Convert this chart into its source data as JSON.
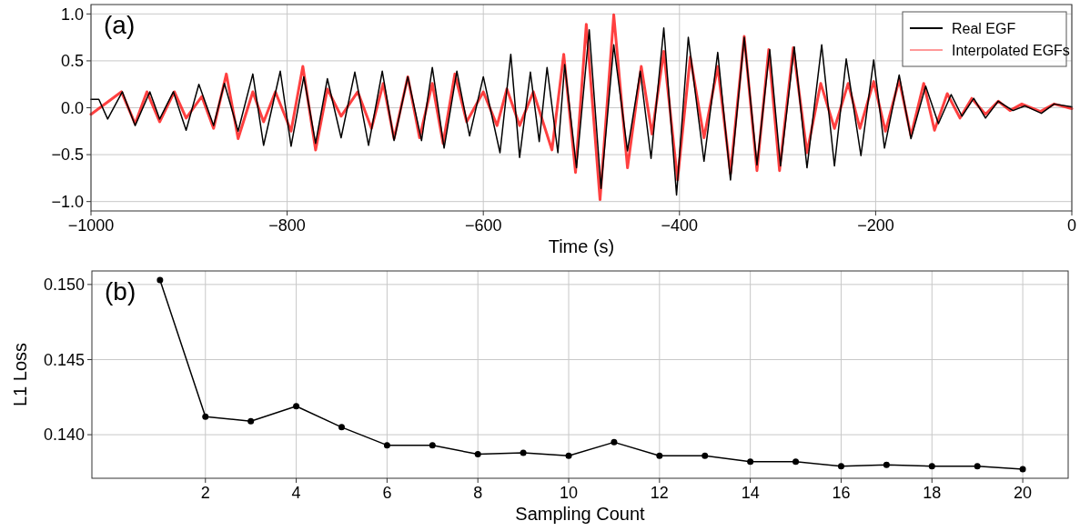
{
  "chart_data": [
    {
      "type": "line",
      "xlabel": "Time (s)",
      "annotations": [
        "(a)"
      ],
      "xlim": [
        -1000,
        0
      ],
      "ylim": [
        -1.1,
        1.1
      ],
      "xticks": [
        {
          "value": -1000,
          "label": "−1000"
        },
        {
          "value": -800,
          "label": "−800"
        },
        {
          "value": -600,
          "label": "−600"
        },
        {
          "value": -400,
          "label": "−400"
        },
        {
          "value": -200,
          "label": "−200"
        },
        0
      ],
      "yticks": [
        {
          "value": -1,
          "label": "−1.0"
        },
        {
          "value": -0.5,
          "label": "−0.5"
        },
        {
          "value": 0,
          "label": "0.0"
        },
        {
          "value": 0.5,
          "label": "0.5"
        },
        {
          "value": 1,
          "label": "1.0"
        }
      ],
      "grid": true,
      "legend": "top right",
      "series": [
        {
          "name": "Real EGF",
          "color": "#000000",
          "x": [
            -1000,
            -992,
            -983,
            -968,
            -955,
            -940,
            -930,
            -916,
            -903,
            -890,
            -875,
            -864,
            -850,
            -835,
            -824,
            -807,
            -796,
            -783,
            -771,
            -759,
            -745,
            -731,
            -717,
            -703,
            -691,
            -677,
            -663,
            -652,
            -640,
            -627,
            -614,
            -600,
            -583,
            -572,
            -563,
            -552,
            -543,
            -535,
            -524,
            -517,
            -505,
            -492,
            -480,
            -467,
            -453,
            -440,
            -429,
            -416,
            -403,
            -391,
            -375,
            -361,
            -348,
            -334,
            -321,
            -308,
            -297,
            -283,
            -270,
            -255,
            -242,
            -230,
            -215,
            -202,
            -191,
            -176,
            -164,
            -149,
            -136,
            -123,
            -112,
            -100,
            -88,
            -75,
            -60,
            -48,
            -31,
            -18,
            0
          ],
          "values": [
            0.09,
            0.09,
            -0.12,
            0.17,
            -0.19,
            0.17,
            -0.12,
            0.17,
            -0.24,
            0.25,
            -0.19,
            0.26,
            -0.25,
            0.36,
            -0.4,
            0.39,
            -0.41,
            0.33,
            -0.38,
            0.31,
            -0.32,
            0.38,
            -0.4,
            0.39,
            -0.35,
            0.33,
            -0.35,
            0.43,
            -0.43,
            0.39,
            -0.3,
            0.33,
            -0.48,
            0.57,
            -0.53,
            0.38,
            -0.36,
            0.43,
            -0.48,
            0.46,
            -0.64,
            0.83,
            -0.86,
            0.67,
            -0.46,
            0.39,
            -0.54,
            0.85,
            -0.93,
            0.75,
            -0.57,
            0.59,
            -0.77,
            0.75,
            -0.61,
            0.62,
            -0.62,
            0.65,
            -0.64,
            0.67,
            -0.62,
            0.52,
            -0.51,
            0.51,
            -0.43,
            0.35,
            -0.33,
            0.23,
            -0.17,
            0.14,
            -0.09,
            0.1,
            -0.11,
            0.07,
            -0.03,
            0.02,
            -0.06,
            0.04,
            0.01
          ]
        },
        {
          "name": "Interpolated EGFs",
          "color": "#ff0000",
          "x": [
            -1000,
            -969,
            -955,
            -943,
            -930,
            -915,
            -903,
            -887,
            -875,
            -862,
            -850,
            -835,
            -824,
            -812,
            -796,
            -784,
            -771,
            -759,
            -745,
            -728,
            -714,
            -702,
            -691,
            -677,
            -665,
            -652,
            -641,
            -629,
            -617,
            -600,
            -586,
            -576,
            -563,
            -549,
            -530,
            -518,
            -506,
            -495,
            -481,
            -467,
            -453,
            -439,
            -428,
            -416,
            -402,
            -389,
            -375,
            -361,
            -348,
            -334,
            -321,
            -309,
            -298,
            -284,
            -270,
            -256,
            -242,
            -228,
            -216,
            -202,
            -190,
            -176,
            -164,
            -151,
            -140,
            -127,
            -114,
            -102,
            -88,
            -75,
            -63,
            -51,
            -32,
            -18,
            0
          ],
          "values": [
            -0.07,
            0.17,
            -0.17,
            0.17,
            -0.15,
            0.17,
            -0.11,
            0.12,
            -0.22,
            0.36,
            -0.33,
            0.17,
            -0.15,
            0.17,
            -0.25,
            0.44,
            -0.45,
            0.2,
            -0.09,
            0.17,
            -0.22,
            0.26,
            -0.33,
            0.33,
            -0.32,
            0.26,
            -0.38,
            0.36,
            -0.15,
            0.17,
            -0.19,
            0.2,
            -0.19,
            0.17,
            -0.45,
            0.57,
            -0.69,
            0.89,
            -0.98,
            0.99,
            -0.64,
            0.44,
            -0.28,
            0.6,
            -0.77,
            0.54,
            -0.32,
            0.44,
            -0.7,
            0.76,
            -0.67,
            0.62,
            -0.67,
            0.64,
            -0.48,
            0.26,
            -0.22,
            0.26,
            -0.22,
            0.28,
            -0.25,
            0.3,
            -0.3,
            0.26,
            -0.24,
            0.15,
            -0.11,
            0.1,
            -0.07,
            0.07,
            -0.03,
            0.04,
            -0.04,
            0.04,
            -0.01
          ]
        }
      ]
    },
    {
      "type": "line",
      "xlabel": "Sampling Count",
      "ylabel": "L1 Loss",
      "annotations": [
        "(b)"
      ],
      "xlim": [
        -0.5,
        21
      ],
      "ylim": [
        0.1371,
        0.1509
      ],
      "xticks": [
        2,
        4,
        6,
        8,
        10,
        12,
        14,
        16,
        18,
        20
      ],
      "yticks": [
        {
          "value": 0.14,
          "label": "0.140"
        },
        {
          "value": 0.145,
          "label": "0.145"
        },
        {
          "value": 0.15,
          "label": "0.150"
        }
      ],
      "grid": true,
      "marker": "circle",
      "series": [
        {
          "color": "#000000",
          "x": [
            1,
            2,
            3,
            4,
            5,
            6,
            7,
            8,
            9,
            10,
            11,
            12,
            13,
            14,
            15,
            16,
            17,
            18,
            19,
            20
          ],
          "values": [
            0.1503,
            0.1412,
            0.1409,
            0.1419,
            0.1405,
            0.1393,
            0.1393,
            0.1387,
            0.1388,
            0.1386,
            0.1395,
            0.1386,
            0.1386,
            0.1382,
            0.1382,
            0.1379,
            0.138,
            0.1379,
            0.1379,
            0.1377
          ]
        }
      ]
    }
  ]
}
